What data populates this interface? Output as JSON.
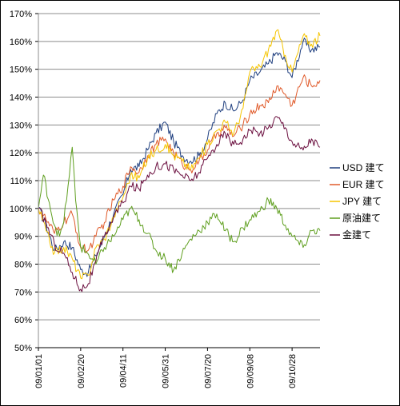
{
  "chart_data": {
    "type": "line",
    "title": "",
    "xlabel": "",
    "ylabel": "",
    "ylim": [
      0.5,
      1.7
    ],
    "y_ticks": [
      "50%",
      "60%",
      "70%",
      "80%",
      "90%",
      "100%",
      "110%",
      "120%",
      "130%",
      "140%",
      "150%",
      "160%",
      "170%"
    ],
    "x_ticks": [
      "09/01/01",
      "09/02/20",
      "09/04/11",
      "09/05/31",
      "09/07/20",
      "09/09/08",
      "09/10/28"
    ],
    "x_range": [
      "09/01/01",
      "09/11/30"
    ],
    "grid": "horizontal",
    "legend_position": "right",
    "series": [
      {
        "name": "USD 建て",
        "color": "#1f3f7f",
        "points": [
          [
            "09/01/01",
            1.0
          ],
          [
            "09/01/10",
            0.94
          ],
          [
            "09/01/20",
            0.85
          ],
          [
            "09/01/31",
            0.88
          ],
          [
            "09/02/10",
            0.86
          ],
          [
            "09/02/20",
            0.78
          ],
          [
            "09/03/01",
            0.77
          ],
          [
            "09/03/10",
            0.83
          ],
          [
            "09/03/20",
            0.9
          ],
          [
            "09/03/31",
            0.98
          ],
          [
            "09/04/11",
            1.05
          ],
          [
            "09/04/20",
            1.14
          ],
          [
            "09/04/30",
            1.15
          ],
          [
            "09/05/10",
            1.21
          ],
          [
            "09/05/20",
            1.27
          ],
          [
            "09/05/31",
            1.31
          ],
          [
            "09/06/10",
            1.24
          ],
          [
            "09/06/20",
            1.19
          ],
          [
            "09/06/30",
            1.17
          ],
          [
            "09/07/10",
            1.19
          ],
          [
            "09/07/20",
            1.25
          ],
          [
            "09/07/31",
            1.34
          ],
          [
            "09/08/10",
            1.38
          ],
          [
            "09/08/20",
            1.35
          ],
          [
            "09/08/31",
            1.39
          ],
          [
            "09/09/08",
            1.46
          ],
          [
            "09/09/20",
            1.49
          ],
          [
            "09/09/30",
            1.52
          ],
          [
            "09/10/10",
            1.56
          ],
          [
            "09/10/20",
            1.53
          ],
          [
            "09/10/28",
            1.47
          ],
          [
            "09/11/10",
            1.6
          ],
          [
            "09/11/20",
            1.57
          ],
          [
            "09/11/30",
            1.58
          ]
        ]
      },
      {
        "name": "EUR 建て",
        "color": "#e05a2a",
        "points": [
          [
            "09/01/01",
            1.0
          ],
          [
            "09/01/10",
            0.96
          ],
          [
            "09/01/20",
            0.91
          ],
          [
            "09/01/31",
            0.95
          ],
          [
            "09/02/10",
            0.98
          ],
          [
            "09/02/20",
            0.86
          ],
          [
            "09/03/01",
            0.85
          ],
          [
            "09/03/10",
            0.9
          ],
          [
            "09/03/20",
            0.95
          ],
          [
            "09/03/31",
            1.03
          ],
          [
            "09/04/11",
            1.08
          ],
          [
            "09/04/20",
            1.15
          ],
          [
            "09/04/30",
            1.13
          ],
          [
            "09/05/10",
            1.19
          ],
          [
            "09/05/20",
            1.23
          ],
          [
            "09/05/31",
            1.25
          ],
          [
            "09/06/10",
            1.2
          ],
          [
            "09/06/20",
            1.16
          ],
          [
            "09/06/30",
            1.14
          ],
          [
            "09/07/10",
            1.17
          ],
          [
            "09/07/20",
            1.21
          ],
          [
            "09/07/31",
            1.27
          ],
          [
            "09/08/10",
            1.29
          ],
          [
            "09/08/20",
            1.26
          ],
          [
            "09/08/31",
            1.3
          ],
          [
            "09/09/08",
            1.34
          ],
          [
            "09/09/20",
            1.37
          ],
          [
            "09/09/30",
            1.38
          ],
          [
            "09/10/10",
            1.44
          ],
          [
            "09/10/20",
            1.41
          ],
          [
            "09/10/28",
            1.37
          ],
          [
            "09/11/10",
            1.47
          ],
          [
            "09/11/20",
            1.44
          ],
          [
            "09/11/30",
            1.46
          ]
        ]
      },
      {
        "name": "JPY 建て",
        "color": "#f5c400",
        "points": [
          [
            "09/01/01",
            1.0
          ],
          [
            "09/01/10",
            0.92
          ],
          [
            "09/01/20",
            0.84
          ],
          [
            "09/01/31",
            0.86
          ],
          [
            "09/02/10",
            0.82
          ],
          [
            "09/02/20",
            0.75
          ],
          [
            "09/03/01",
            0.76
          ],
          [
            "09/03/10",
            0.86
          ],
          [
            "09/03/20",
            0.89
          ],
          [
            "09/03/31",
            0.97
          ],
          [
            "09/04/11",
            1.04
          ],
          [
            "09/04/20",
            1.12
          ],
          [
            "09/04/30",
            1.11
          ],
          [
            "09/05/10",
            1.18
          ],
          [
            "09/05/20",
            1.21
          ],
          [
            "09/05/31",
            1.23
          ],
          [
            "09/06/10",
            1.19
          ],
          [
            "09/06/20",
            1.17
          ],
          [
            "09/06/30",
            1.14
          ],
          [
            "09/07/10",
            1.18
          ],
          [
            "09/07/20",
            1.23
          ],
          [
            "09/07/31",
            1.28
          ],
          [
            "09/08/10",
            1.31
          ],
          [
            "09/08/20",
            1.27
          ],
          [
            "09/08/31",
            1.36
          ],
          [
            "09/09/08",
            1.49
          ],
          [
            "09/09/20",
            1.51
          ],
          [
            "09/09/30",
            1.57
          ],
          [
            "09/10/10",
            1.64
          ],
          [
            "09/10/20",
            1.55
          ],
          [
            "09/10/28",
            1.49
          ],
          [
            "09/11/10",
            1.62
          ],
          [
            "09/11/20",
            1.59
          ],
          [
            "09/11/30",
            1.62
          ]
        ]
      },
      {
        "name": "原油建て",
        "color": "#5f9f1f",
        "points": [
          [
            "09/01/01",
            1.0
          ],
          [
            "09/01/07",
            1.12
          ],
          [
            "09/01/14",
            1.02
          ],
          [
            "09/01/20",
            0.94
          ],
          [
            "09/01/26",
            0.9
          ],
          [
            "09/01/31",
            0.95
          ],
          [
            "09/02/05",
            1.08
          ],
          [
            "09/02/10",
            1.22
          ],
          [
            "09/02/14",
            1.03
          ],
          [
            "09/02/20",
            0.86
          ],
          [
            "09/02/28",
            0.84
          ],
          [
            "09/03/10",
            0.8
          ],
          [
            "09/03/20",
            0.86
          ],
          [
            "09/03/31",
            0.9
          ],
          [
            "09/04/11",
            0.96
          ],
          [
            "09/04/20",
            1.0
          ],
          [
            "09/04/30",
            0.96
          ],
          [
            "09/05/10",
            0.91
          ],
          [
            "09/05/20",
            0.85
          ],
          [
            "09/05/31",
            0.82
          ],
          [
            "09/06/10",
            0.78
          ],
          [
            "09/06/20",
            0.84
          ],
          [
            "09/06/30",
            0.89
          ],
          [
            "09/07/10",
            0.92
          ],
          [
            "09/07/20",
            0.95
          ],
          [
            "09/07/31",
            0.98
          ],
          [
            "09/08/10",
            0.92
          ],
          [
            "09/08/20",
            0.88
          ],
          [
            "09/08/31",
            0.93
          ],
          [
            "09/09/08",
            0.96
          ],
          [
            "09/09/20",
            0.99
          ],
          [
            "09/09/30",
            1.03
          ],
          [
            "09/10/10",
            1.0
          ],
          [
            "09/10/20",
            0.94
          ],
          [
            "09/10/28",
            0.9
          ],
          [
            "09/11/10",
            0.86
          ],
          [
            "09/11/20",
            0.92
          ],
          [
            "09/11/30",
            0.92
          ]
        ]
      },
      {
        "name": "金建て",
        "color": "#6b0f3f",
        "points": [
          [
            "09/01/01",
            1.0
          ],
          [
            "09/01/10",
            0.95
          ],
          [
            "09/01/20",
            0.87
          ],
          [
            "09/01/31",
            0.84
          ],
          [
            "09/02/10",
            0.77
          ],
          [
            "09/02/20",
            0.71
          ],
          [
            "09/03/01",
            0.73
          ],
          [
            "09/03/10",
            0.81
          ],
          [
            "09/03/20",
            0.9
          ],
          [
            "09/03/31",
            0.97
          ],
          [
            "09/04/11",
            1.02
          ],
          [
            "09/04/20",
            1.08
          ],
          [
            "09/04/30",
            1.07
          ],
          [
            "09/05/10",
            1.12
          ],
          [
            "09/05/20",
            1.15
          ],
          [
            "09/05/31",
            1.16
          ],
          [
            "09/06/10",
            1.14
          ],
          [
            "09/06/20",
            1.12
          ],
          [
            "09/06/30",
            1.1
          ],
          [
            "09/07/10",
            1.13
          ],
          [
            "09/07/20",
            1.18
          ],
          [
            "09/07/31",
            1.23
          ],
          [
            "09/08/10",
            1.27
          ],
          [
            "09/08/20",
            1.23
          ],
          [
            "09/08/31",
            1.25
          ],
          [
            "09/09/08",
            1.28
          ],
          [
            "09/09/20",
            1.27
          ],
          [
            "09/09/30",
            1.29
          ],
          [
            "09/10/10",
            1.33
          ],
          [
            "09/10/20",
            1.29
          ],
          [
            "09/10/28",
            1.24
          ],
          [
            "09/11/10",
            1.21
          ],
          [
            "09/11/20",
            1.25
          ],
          [
            "09/11/30",
            1.22
          ]
        ]
      }
    ]
  }
}
